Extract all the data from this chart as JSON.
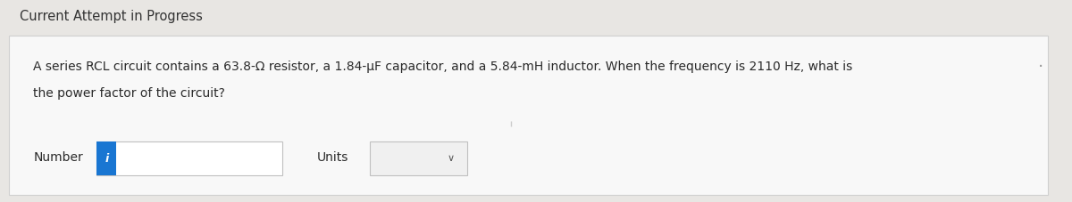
{
  "background_color": "#e8e6e3",
  "header_text": "Current Attempt in Progress",
  "header_fontsize": 10.5,
  "header_color": "#333333",
  "body_bg_color": "#f8f8f8",
  "question_line1": "A series RCL circuit contains a 63.8-Ω resistor, a 1.84-μF capacitor, and a 5.84-mH inductor. When the frequency is 2110 Hz, what is",
  "question_line2": "the power factor of the circuit?",
  "question_fontsize": 10.0,
  "question_color": "#2a2a2a",
  "number_label": "Number",
  "units_label": "Units",
  "label_fontsize": 10.0,
  "blue_bar_color": "#1976d2",
  "blue_icon_color": "#1976d2",
  "number_box_border": "#c0c0c0",
  "units_box_border": "#c0c0c0",
  "chevron_color": "#555555",
  "dot_color": "#999999",
  "body_border_color": "#d0d0d0"
}
